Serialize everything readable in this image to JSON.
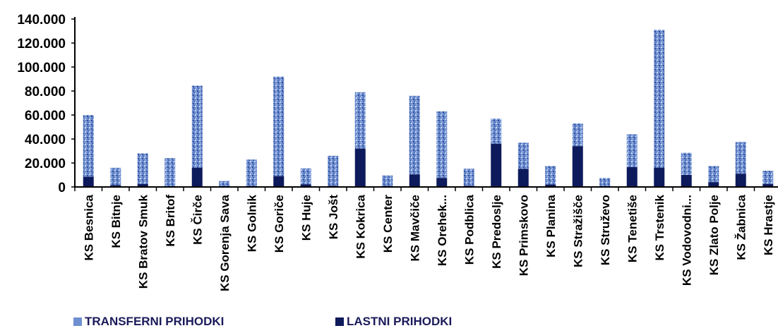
{
  "chart_data": {
    "type": "bar",
    "stacked": true,
    "categories": [
      "KS Besnica",
      "KS Bitnje",
      "KS Bratov Smuk",
      "KS Britof",
      "KS Čirče",
      "KS Gorenja Sava",
      "KS Golnik",
      "KS Goriče",
      "KS Huje",
      "KS Jošt",
      "KS Kokrica",
      "KS Center",
      "KS Mavčiče",
      "KS Orehek...",
      "KS Podblica",
      "KS Predoslje",
      "KS Primskovo",
      "KS Planina",
      "KS Stražišče",
      "KS Struževo",
      "KS Tenetiše",
      "KS Trstenik",
      "KS Vodovodni...",
      "KS Zlato Polje",
      "KS Žabnica",
      "KS Hrastje"
    ],
    "series": [
      {
        "name": "LASTNI PRIHODKI",
        "color": "#0d1a5c",
        "values": [
          8500,
          1500,
          2500,
          500,
          16000,
          300,
          800,
          9000,
          2200,
          1000,
          32000,
          800,
          10500,
          7500,
          1000,
          36000,
          15000,
          2000,
          34000,
          500,
          16500,
          16000,
          10000,
          4000,
          11000,
          2500
        ]
      },
      {
        "name": "TRANSFERNI PRIHODKI",
        "color": "#6f8fd0",
        "values": [
          51500,
          14500,
          25500,
          23500,
          68500,
          4700,
          22200,
          83000,
          13300,
          25000,
          47000,
          8700,
          65500,
          55500,
          14200,
          21000,
          22000,
          15500,
          19000,
          7000,
          27500,
          115000,
          18500,
          13500,
          26500,
          11000
        ]
      }
    ],
    "y_ticks": [
      "0",
      "20.000",
      "40.000",
      "60.000",
      "80.000",
      "100.000",
      "120.000",
      "140.000"
    ],
    "ylim": [
      0,
      140000
    ],
    "grid": false,
    "legend_position": "bottom-left"
  },
  "legend": {
    "transfer_label": "TRANSFERNI PRIHODKI",
    "own_label": "LASTNI PRIHODKI"
  }
}
